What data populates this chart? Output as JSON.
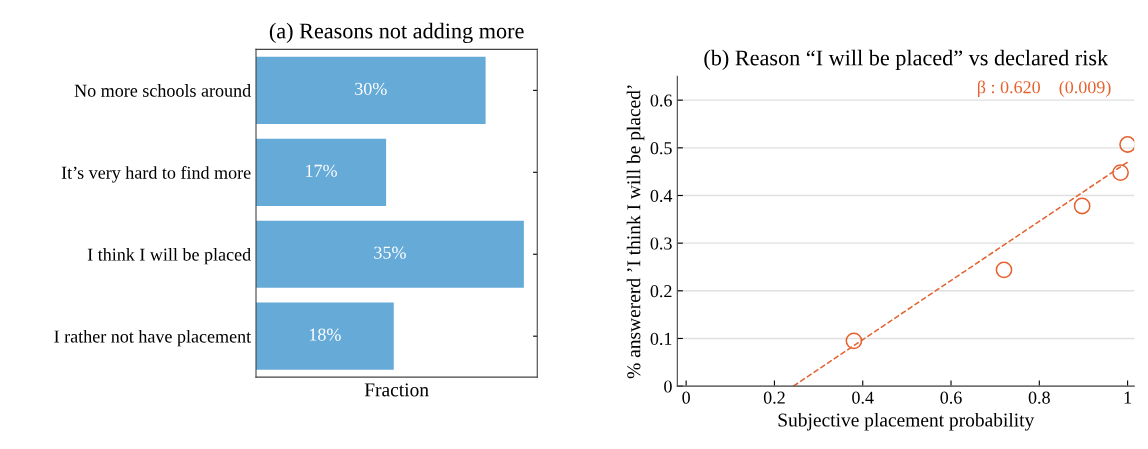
{
  "chart_data": [
    {
      "type": "bar",
      "orientation": "horizontal",
      "title": "(a) Reasons not adding more",
      "xlabel": "Fraction",
      "categories": [
        "No more schools around",
        "It’s very hard to find more",
        "I think I will be placed",
        "I rather not have placement"
      ],
      "values": [
        30,
        17,
        35,
        18
      ],
      "value_labels": [
        "30%",
        "17%",
        "35%",
        "18%"
      ],
      "color": "#66aad8",
      "tick_labels": "y",
      "grid": false
    },
    {
      "type": "scatter",
      "title": "(b) Reason “I will be placed” vs declared risk",
      "xlabel": "Subjective placement probability",
      "ylabel": "% answererd ’I think I will be placed’",
      "annotations": [
        "β : 0.620    (0.009)"
      ],
      "xlim": [
        -0.02,
        1.015
      ],
      "ylim": [
        0,
        0.65
      ],
      "xticks": [
        0,
        0.2,
        0.4,
        0.6,
        0.8,
        1
      ],
      "yticks": [
        0,
        0.1,
        0.2,
        0.3,
        0.4,
        0.5,
        0.6
      ],
      "grid": "y",
      "series": [
        {
          "type": "scatter",
          "color": "#e5622f",
          "marker": "circle",
          "x": [
            0.38,
            0.72,
            0.897,
            0.984,
            1.0
          ],
          "values": [
            0.095,
            0.244,
            0.378,
            0.448,
            0.507
          ]
        },
        {
          "type": "line",
          "color": "#e5622f",
          "line_style": "dashed",
          "x": [
            0.243,
            1.0
          ],
          "values": [
            0,
            0.47
          ]
        }
      ]
    }
  ]
}
